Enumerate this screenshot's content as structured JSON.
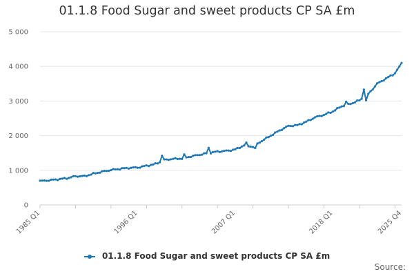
{
  "page": {
    "title": "01.1.8 Food Sugar and sweet products CP SA £m",
    "source_label": "Source:"
  },
  "colors": {
    "series": "#1f78b4",
    "grid": "#e6e6e6",
    "text": "#333333"
  },
  "chart_data": {
    "type": "line",
    "title": "01.1.8 Food Sugar and sweet products CP SA £m",
    "xlabel": "",
    "ylabel": "",
    "ylim": [
      0,
      5000
    ],
    "yticks": [
      0,
      1000,
      2000,
      3000,
      4000,
      5000
    ],
    "ytick_labels": [
      "0",
      "1 000",
      "2 000",
      "3 000",
      "4 000",
      "5 000"
    ],
    "x_range": [
      "1985 Q1",
      "2025 Q4"
    ],
    "xtick_labels": [
      "1985 Q1",
      "1996 Q1",
      "2007 Q1",
      "2018 Q1",
      "2025 Q4"
    ],
    "grid": true,
    "legend_position": "bottom",
    "series": [
      {
        "name": "01.1.8 Food Sugar and sweet products CP SA £m",
        "anchors": [
          [
            "1985 Q1",
            700
          ],
          [
            "1986 Q1",
            710
          ],
          [
            "1988 Q1",
            770
          ],
          [
            "1989 Q1",
            830
          ],
          [
            "1990 Q1",
            830
          ],
          [
            "1991 Q1",
            900
          ],
          [
            "1992 Q1",
            960
          ],
          [
            "1993 Q1",
            1010
          ],
          [
            "1994 Q1",
            1040
          ],
          [
            "1995 Q1",
            1070
          ],
          [
            "1996 Q1",
            1080
          ],
          [
            "1997 Q1",
            1130
          ],
          [
            "1998 Q1",
            1180
          ],
          [
            "1999 Q1",
            1300
          ],
          [
            "2000 Q1",
            1330
          ],
          [
            "2001 Q1",
            1340
          ],
          [
            "2002 Q1",
            1400
          ],
          [
            "2003 Q1",
            1450
          ],
          [
            "2004 Q1",
            1500
          ],
          [
            "2005 Q1",
            1540
          ],
          [
            "2006 Q1",
            1560
          ],
          [
            "2007 Q1",
            1600
          ],
          [
            "2008 Q1",
            1720
          ],
          [
            "2009 Q1",
            1680
          ],
          [
            "2010 Q1",
            1850
          ],
          [
            "2011 Q1",
            2000
          ],
          [
            "2012 Q1",
            2150
          ],
          [
            "2013 Q1",
            2280
          ],
          [
            "2014 Q1",
            2300
          ],
          [
            "2015 Q1",
            2400
          ],
          [
            "2016 Q1",
            2530
          ],
          [
            "2017 Q1",
            2600
          ],
          [
            "2018 Q1",
            2700
          ],
          [
            "2019 Q1",
            2850
          ],
          [
            "2020 Q1",
            2920
          ],
          [
            "2021 Q1",
            3020
          ],
          [
            "2022 Q1",
            3200
          ],
          [
            "2023 Q1",
            3500
          ],
          [
            "2024 Q1",
            3650
          ],
          [
            "2025 Q1",
            3800
          ],
          [
            "2025 Q4",
            4100
          ]
        ],
        "spikes": [
          [
            "1998 Q4",
            1420
          ],
          [
            "2001 Q2",
            1460
          ],
          [
            "2004 Q1",
            1650
          ],
          [
            "2008 Q2",
            1800
          ],
          [
            "2009 Q2",
            1640
          ],
          [
            "2019 Q3",
            2980
          ],
          [
            "2021 Q3",
            3330
          ],
          [
            "2021 Q4",
            3020
          ]
        ]
      }
    ]
  }
}
